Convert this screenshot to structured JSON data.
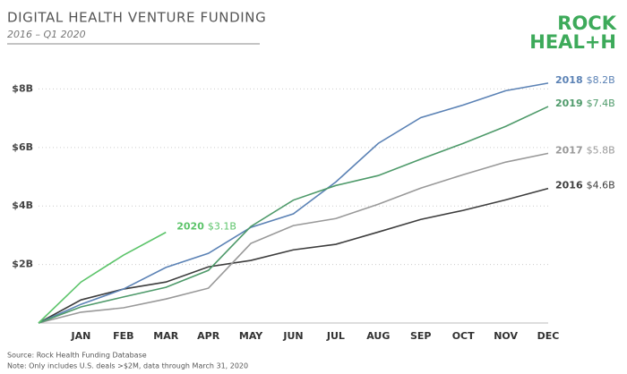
{
  "chart_data": {
    "type": "line",
    "title": "DIGITAL HEALTH VENTURE FUNDING",
    "subtitle": "2016 – Q1 2020",
    "logo": [
      "ROCK",
      "HEAL+H"
    ],
    "source": "Source: Rock Health Funding Database",
    "note": "Note: Only includes U.S. deals >$2M, data through March 31, 2020",
    "categories": [
      null,
      "JAN",
      "FEB",
      "MAR",
      "APR",
      "MAY",
      "JUN",
      "JUL",
      "AUG",
      "SEP",
      "OCT",
      "NOV",
      "DEC"
    ],
    "ylim": [
      0,
      8.9
    ],
    "yticks": [
      {
        "value": 2,
        "label": "$2B"
      },
      {
        "value": 4,
        "label": "$4B"
      },
      {
        "value": 6,
        "label": "$6B"
      },
      {
        "value": 8,
        "label": "$8B"
      }
    ],
    "grid": true,
    "series": [
      {
        "name": "2016",
        "color": "#3d3d3d",
        "values": [
          0,
          0.79,
          1.16,
          1.4,
          1.92,
          2.14,
          2.5,
          2.69,
          3.11,
          3.54,
          3.85,
          4.21,
          4.6
        ],
        "value_labels": [
          null,
          null,
          null,
          null,
          null,
          null,
          null,
          null,
          null,
          null,
          null,
          null,
          "$4.6B"
        ]
      },
      {
        "name": "2017",
        "color": "#999999",
        "values": [
          0,
          0.37,
          0.52,
          0.82,
          1.19,
          2.72,
          3.33,
          3.57,
          4.06,
          4.61,
          5.07,
          5.5,
          5.8
        ],
        "value_labels": [
          null,
          null,
          null,
          null,
          null,
          null,
          null,
          null,
          null,
          null,
          null,
          null,
          "$5.8B"
        ]
      },
      {
        "name": "2018",
        "color": "#5b82b5",
        "values": [
          0,
          0.64,
          1.16,
          1.9,
          2.38,
          3.27,
          3.73,
          4.82,
          6.14,
          7.02,
          7.45,
          7.94,
          8.2
        ],
        "value_labels": [
          null,
          null,
          null,
          null,
          null,
          null,
          null,
          null,
          null,
          null,
          null,
          null,
          "$8.2B"
        ]
      },
      {
        "name": "2019",
        "color": "#4e9a6a",
        "values": [
          0,
          0.55,
          0.89,
          1.22,
          1.8,
          3.3,
          4.2,
          4.7,
          5.04,
          5.6,
          6.14,
          6.72,
          7.4
        ],
        "value_labels": [
          null,
          null,
          null,
          null,
          null,
          null,
          null,
          null,
          null,
          null,
          null,
          null,
          "$7.4B"
        ]
      },
      {
        "name": "2020",
        "color": "#5cc46a",
        "values": [
          0,
          1.4,
          2.32,
          3.1,
          null,
          null,
          null,
          null,
          null,
          null,
          null,
          null,
          null
        ],
        "value_labels": [
          null,
          null,
          null,
          "$3.1B",
          null,
          null,
          null,
          null,
          null,
          null,
          null,
          null,
          null
        ]
      }
    ]
  }
}
